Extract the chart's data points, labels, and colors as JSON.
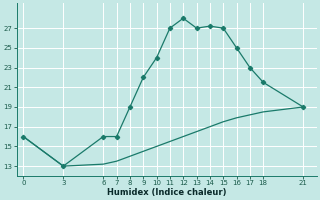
{
  "xlabel": "Humidex (Indice chaleur)",
  "bg_color": "#c5e8e5",
  "grid_color": "#ffffff",
  "line_color": "#1a7a6a",
  "x_ticks": [
    0,
    3,
    6,
    7,
    8,
    9,
    10,
    11,
    12,
    13,
    14,
    15,
    16,
    17,
    18,
    21
  ],
  "y_ticks": [
    13,
    15,
    17,
    19,
    21,
    23,
    25,
    27
  ],
  "xlim": [
    -0.5,
    22
  ],
  "ylim": [
    12.0,
    29.5
  ],
  "line1_x": [
    0,
    3,
    6,
    7,
    8,
    9,
    10,
    11,
    12,
    13,
    14,
    15,
    16,
    17,
    18,
    21
  ],
  "line1_y": [
    16,
    13,
    16,
    16,
    19,
    22,
    24,
    27,
    28,
    27,
    27.2,
    27,
    25,
    23,
    21.5,
    19
  ],
  "line2_x": [
    0,
    3,
    6,
    7,
    8,
    9,
    10,
    11,
    12,
    13,
    14,
    15,
    16,
    17,
    18,
    21
  ],
  "line2_y": [
    16,
    13,
    13.2,
    13.5,
    14.0,
    14.5,
    15.0,
    15.5,
    16.0,
    16.5,
    17.0,
    17.5,
    17.9,
    18.2,
    18.5,
    19.0
  ],
  "tick_fontsize": 5.0,
  "xlabel_fontsize": 6.0,
  "tick_color": "#1a5a4a",
  "xlabel_color": "#0a2a2a",
  "marker": "D",
  "markersize": 2.2,
  "linewidth": 0.9
}
